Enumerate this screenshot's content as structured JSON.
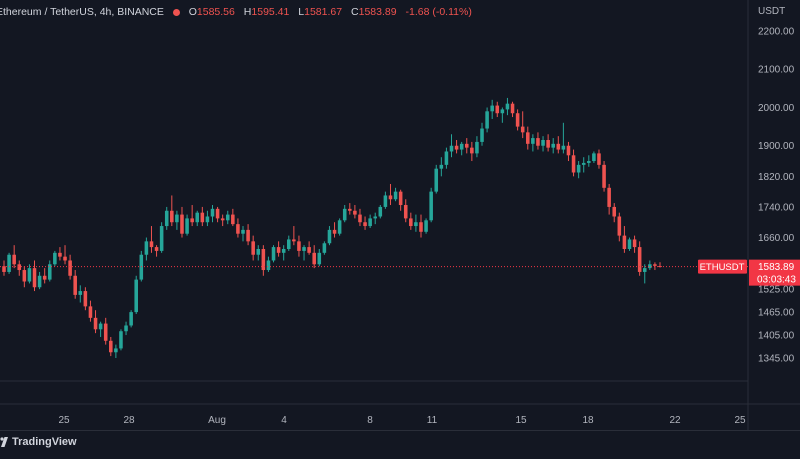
{
  "legend": {
    "symbol": "Ethereum / TetherUS, 4h, BINANCE",
    "o_label": "O",
    "o_value": "1585.56",
    "h_label": "H",
    "h_value": "1595.41",
    "l_label": "L",
    "l_value": "1581.67",
    "c_label": "C",
    "c_value": "1583.89",
    "change": "-1.68 (-0.11%)"
  },
  "price_axis": {
    "unit": "USDT",
    "ticks": [
      2200,
      2100,
      2000,
      1900,
      1820,
      1740,
      1660,
      1525,
      1465,
      1405,
      1345
    ],
    "tick_labels": [
      "2200.00",
      "2100.00",
      "2000.00",
      "1900.00",
      "1820.00",
      "1740.00",
      "1660.00",
      "1525.00",
      "1465.00",
      "1405.00",
      "1345.00"
    ]
  },
  "time_axis": {
    "labels": [
      "25",
      "28",
      "Aug",
      "4",
      "8",
      "11",
      "15",
      "18",
      "22",
      "25"
    ]
  },
  "last_price": {
    "symbol": "ETHUSDT",
    "price": "1583.89",
    "countdown": "03:03:43",
    "color": "#f23645"
  },
  "branding": {
    "name": "TradingView"
  },
  "colors": {
    "background": "#131722",
    "up": "#26a69a",
    "down": "#ef5350",
    "grid": "#1e222d",
    "axis_text": "#b2b5be"
  },
  "chart_data": {
    "type": "candlestick",
    "title": "Ethereum / TetherUS, 4h, BINANCE",
    "ylabel": "USDT",
    "ylim": [
      1300,
      2250
    ],
    "last": 1583.89,
    "candles": [
      [
        1585,
        1600,
        1560,
        1570
      ],
      [
        1570,
        1620,
        1565,
        1615
      ],
      [
        1615,
        1640,
        1580,
        1590
      ],
      [
        1590,
        1600,
        1560,
        1575
      ],
      [
        1575,
        1585,
        1530,
        1545
      ],
      [
        1545,
        1590,
        1540,
        1580
      ],
      [
        1580,
        1600,
        1520,
        1530
      ],
      [
        1530,
        1570,
        1525,
        1560
      ],
      [
        1560,
        1580,
        1540,
        1550
      ],
      [
        1550,
        1600,
        1545,
        1590
      ],
      [
        1590,
        1625,
        1585,
        1620
      ],
      [
        1620,
        1635,
        1600,
        1610
      ],
      [
        1610,
        1640,
        1590,
        1600
      ],
      [
        1600,
        1615,
        1550,
        1560
      ],
      [
        1560,
        1575,
        1500,
        1510
      ],
      [
        1510,
        1535,
        1490,
        1520
      ],
      [
        1520,
        1530,
        1470,
        1480
      ],
      [
        1480,
        1495,
        1440,
        1450
      ],
      [
        1450,
        1470,
        1410,
        1420
      ],
      [
        1420,
        1440,
        1400,
        1435
      ],
      [
        1435,
        1450,
        1380,
        1390
      ],
      [
        1390,
        1400,
        1350,
        1360
      ],
      [
        1360,
        1380,
        1345,
        1370
      ],
      [
        1370,
        1420,
        1365,
        1415
      ],
      [
        1415,
        1440,
        1405,
        1430
      ],
      [
        1430,
        1470,
        1425,
        1465
      ],
      [
        1465,
        1560,
        1460,
        1550
      ],
      [
        1550,
        1625,
        1545,
        1615
      ],
      [
        1615,
        1660,
        1600,
        1650
      ],
      [
        1650,
        1690,
        1620,
        1635
      ],
      [
        1635,
        1640,
        1610,
        1625
      ],
      [
        1625,
        1700,
        1620,
        1690
      ],
      [
        1690,
        1740,
        1680,
        1730
      ],
      [
        1730,
        1770,
        1690,
        1700
      ],
      [
        1700,
        1730,
        1680,
        1720
      ],
      [
        1720,
        1740,
        1660,
        1670
      ],
      [
        1670,
        1720,
        1665,
        1710
      ],
      [
        1710,
        1745,
        1690,
        1700
      ],
      [
        1700,
        1730,
        1690,
        1725
      ],
      [
        1725,
        1740,
        1690,
        1700
      ],
      [
        1700,
        1730,
        1690,
        1715
      ],
      [
        1715,
        1745,
        1700,
        1735
      ],
      [
        1735,
        1740,
        1700,
        1710
      ],
      [
        1710,
        1720,
        1690,
        1705
      ],
      [
        1705,
        1730,
        1695,
        1720
      ],
      [
        1720,
        1735,
        1690,
        1695
      ],
      [
        1695,
        1710,
        1660,
        1670
      ],
      [
        1670,
        1690,
        1650,
        1680
      ],
      [
        1680,
        1695,
        1640,
        1650
      ],
      [
        1650,
        1665,
        1600,
        1615
      ],
      [
        1615,
        1640,
        1600,
        1630
      ],
      [
        1630,
        1640,
        1560,
        1575
      ],
      [
        1575,
        1610,
        1570,
        1600
      ],
      [
        1600,
        1640,
        1595,
        1635
      ],
      [
        1635,
        1650,
        1610,
        1620
      ],
      [
        1620,
        1640,
        1600,
        1630
      ],
      [
        1630,
        1665,
        1625,
        1655
      ],
      [
        1655,
        1690,
        1640,
        1650
      ],
      [
        1650,
        1665,
        1610,
        1625
      ],
      [
        1625,
        1640,
        1600,
        1635
      ],
      [
        1635,
        1650,
        1615,
        1620
      ],
      [
        1620,
        1640,
        1580,
        1590
      ],
      [
        1590,
        1630,
        1585,
        1620
      ],
      [
        1620,
        1650,
        1615,
        1645
      ],
      [
        1645,
        1690,
        1640,
        1680
      ],
      [
        1680,
        1700,
        1660,
        1670
      ],
      [
        1670,
        1710,
        1665,
        1705
      ],
      [
        1705,
        1745,
        1700,
        1735
      ],
      [
        1735,
        1750,
        1720,
        1730
      ],
      [
        1730,
        1745,
        1710,
        1720
      ],
      [
        1720,
        1735,
        1690,
        1700
      ],
      [
        1700,
        1715,
        1680,
        1690
      ],
      [
        1690,
        1720,
        1685,
        1710
      ],
      [
        1710,
        1725,
        1695,
        1715
      ],
      [
        1715,
        1745,
        1710,
        1740
      ],
      [
        1740,
        1780,
        1735,
        1770
      ],
      [
        1770,
        1800,
        1745,
        1760
      ],
      [
        1760,
        1790,
        1755,
        1780
      ],
      [
        1780,
        1785,
        1730,
        1745
      ],
      [
        1745,
        1760,
        1700,
        1710
      ],
      [
        1710,
        1725,
        1680,
        1690
      ],
      [
        1690,
        1720,
        1675,
        1700
      ],
      [
        1700,
        1720,
        1660,
        1675
      ],
      [
        1675,
        1710,
        1670,
        1705
      ],
      [
        1705,
        1790,
        1700,
        1780
      ],
      [
        1780,
        1850,
        1775,
        1840
      ],
      [
        1840,
        1870,
        1820,
        1850
      ],
      [
        1850,
        1895,
        1840,
        1885
      ],
      [
        1885,
        1930,
        1870,
        1900
      ],
      [
        1900,
        1915,
        1880,
        1890
      ],
      [
        1890,
        1910,
        1875,
        1905
      ],
      [
        1905,
        1920,
        1880,
        1895
      ],
      [
        1895,
        1910,
        1860,
        1880
      ],
      [
        1880,
        1925,
        1870,
        1910
      ],
      [
        1910,
        1960,
        1900,
        1945
      ],
      [
        1945,
        2000,
        1935,
        1990
      ],
      [
        1990,
        2020,
        1970,
        2005
      ],
      [
        2005,
        2015,
        1975,
        1985
      ],
      [
        1985,
        2000,
        1960,
        1995
      ],
      [
        1995,
        2025,
        1980,
        2010
      ],
      [
        2010,
        2015,
        1975,
        1985
      ],
      [
        1985,
        1995,
        1940,
        1950
      ],
      [
        1950,
        1990,
        1920,
        1935
      ],
      [
        1935,
        1950,
        1890,
        1905
      ],
      [
        1905,
        1930,
        1885,
        1920
      ],
      [
        1920,
        1935,
        1890,
        1900
      ],
      [
        1900,
        1925,
        1885,
        1915
      ],
      [
        1915,
        1930,
        1885,
        1895
      ],
      [
        1895,
        1920,
        1880,
        1905
      ],
      [
        1905,
        1925,
        1880,
        1890
      ],
      [
        1890,
        1960,
        1880,
        1900
      ],
      [
        1900,
        1910,
        1860,
        1875
      ],
      [
        1875,
        1890,
        1820,
        1830
      ],
      [
        1830,
        1860,
        1815,
        1850
      ],
      [
        1850,
        1870,
        1830,
        1855
      ],
      [
        1855,
        1875,
        1845,
        1860
      ],
      [
        1860,
        1885,
        1855,
        1880
      ],
      [
        1880,
        1890,
        1840,
        1850
      ],
      [
        1850,
        1860,
        1780,
        1790
      ],
      [
        1790,
        1800,
        1720,
        1740
      ],
      [
        1740,
        1750,
        1700,
        1715
      ],
      [
        1715,
        1725,
        1650,
        1665
      ],
      [
        1665,
        1690,
        1620,
        1630
      ],
      [
        1630,
        1660,
        1625,
        1655
      ],
      [
        1655,
        1665,
        1620,
        1635
      ],
      [
        1635,
        1650,
        1560,
        1570
      ],
      [
        1570,
        1590,
        1540,
        1580
      ],
      [
        1580,
        1600,
        1575,
        1590
      ],
      [
        1590,
        1595,
        1575,
        1586
      ],
      [
        1585.56,
        1595.41,
        1581.67,
        1583.89
      ]
    ]
  }
}
